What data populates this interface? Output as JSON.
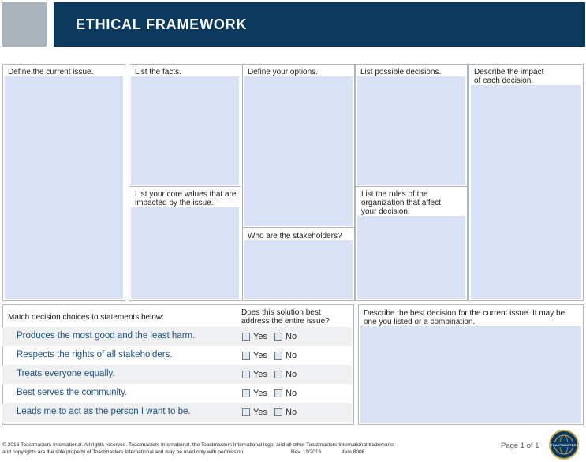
{
  "header": {
    "title": "ETHICAL FRAMEWORK"
  },
  "panels": {
    "current_issue": "Define the current issue.",
    "facts": "List the facts.",
    "core_values_1": "List your core values that are",
    "core_values_2": "impacted by the issue.",
    "options": "Define your options.",
    "stakeholders": "Who are the stakeholders?",
    "decisions": "List possible decisions.",
    "rules_1": "List the rules of the",
    "rules_2": "organization that affect",
    "rules_3": "your decision.",
    "impact_1": "Describe the impact",
    "impact_2": "of each decision.",
    "best_1": "Describe the best decision for the current issue. It may be",
    "best_2": "one you listed or a combination."
  },
  "match": {
    "heading": "Match decision choices to statements below:",
    "question_1": "Does this solution best",
    "question_2": "address the entire issue?",
    "yes": "Yes",
    "no": "No",
    "statements": [
      "Produces the most good and the least harm.",
      "Respects the rights of all stakeholders.",
      "Treats everyone equally.",
      "Best serves the community.",
      "Leads me to act as the person I want to be."
    ]
  },
  "footer": {
    "line1": "© 2016 Toastmasters International. All rights reserved. Toastmasters International, the Toastmasters International logo, and all other Toastmasters International trademarks",
    "line2": "and copyrights are the sole property of Toastmasters International and may be used only with permission.",
    "rev": "Rev. 11/2016",
    "item": "Item 8006",
    "page": "Page 1 of 1",
    "logo_text": "TOASTMASTERS"
  },
  "colors": {
    "header": "#093a5e",
    "fill": "#d9e1f6",
    "statement": "#1f4f7f"
  }
}
